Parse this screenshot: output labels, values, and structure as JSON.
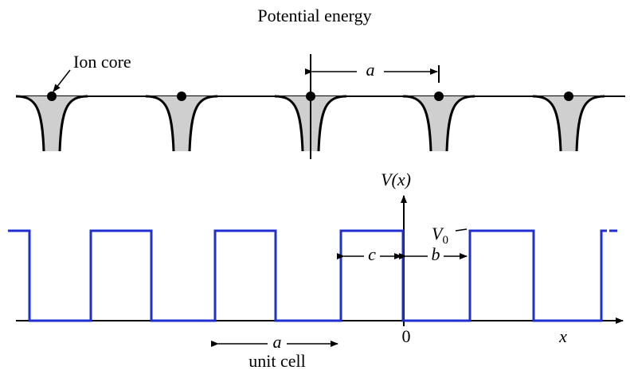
{
  "title": "Potential energy",
  "crystal": {
    "ion_label": "Ion core",
    "spacing_label": "a"
  },
  "potential": {
    "axis_label": "V(x)",
    "barrier_label": {
      "base": "V",
      "sub": "0"
    },
    "c_label": "c",
    "b_label": "b",
    "origin_label": "0",
    "x_label": "x",
    "period_label": "a",
    "cell_label": "unit cell"
  }
}
